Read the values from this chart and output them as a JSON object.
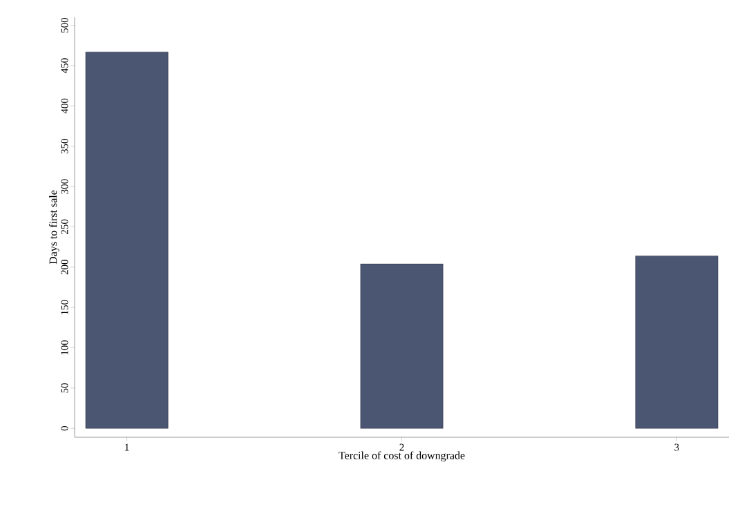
{
  "chart_data": {
    "type": "bar",
    "xlabel": "Tercile of cost of downgrade",
    "ylabel": "Days to first sale",
    "categories": [
      "1",
      "2",
      "3"
    ],
    "values": [
      467,
      204,
      214
    ],
    "color": "#4b5672",
    "ylim": [
      -11,
      510
    ],
    "yticks": [
      0,
      50,
      100,
      150,
      200,
      250,
      300,
      350,
      400,
      450,
      500
    ],
    "grid": false
  }
}
